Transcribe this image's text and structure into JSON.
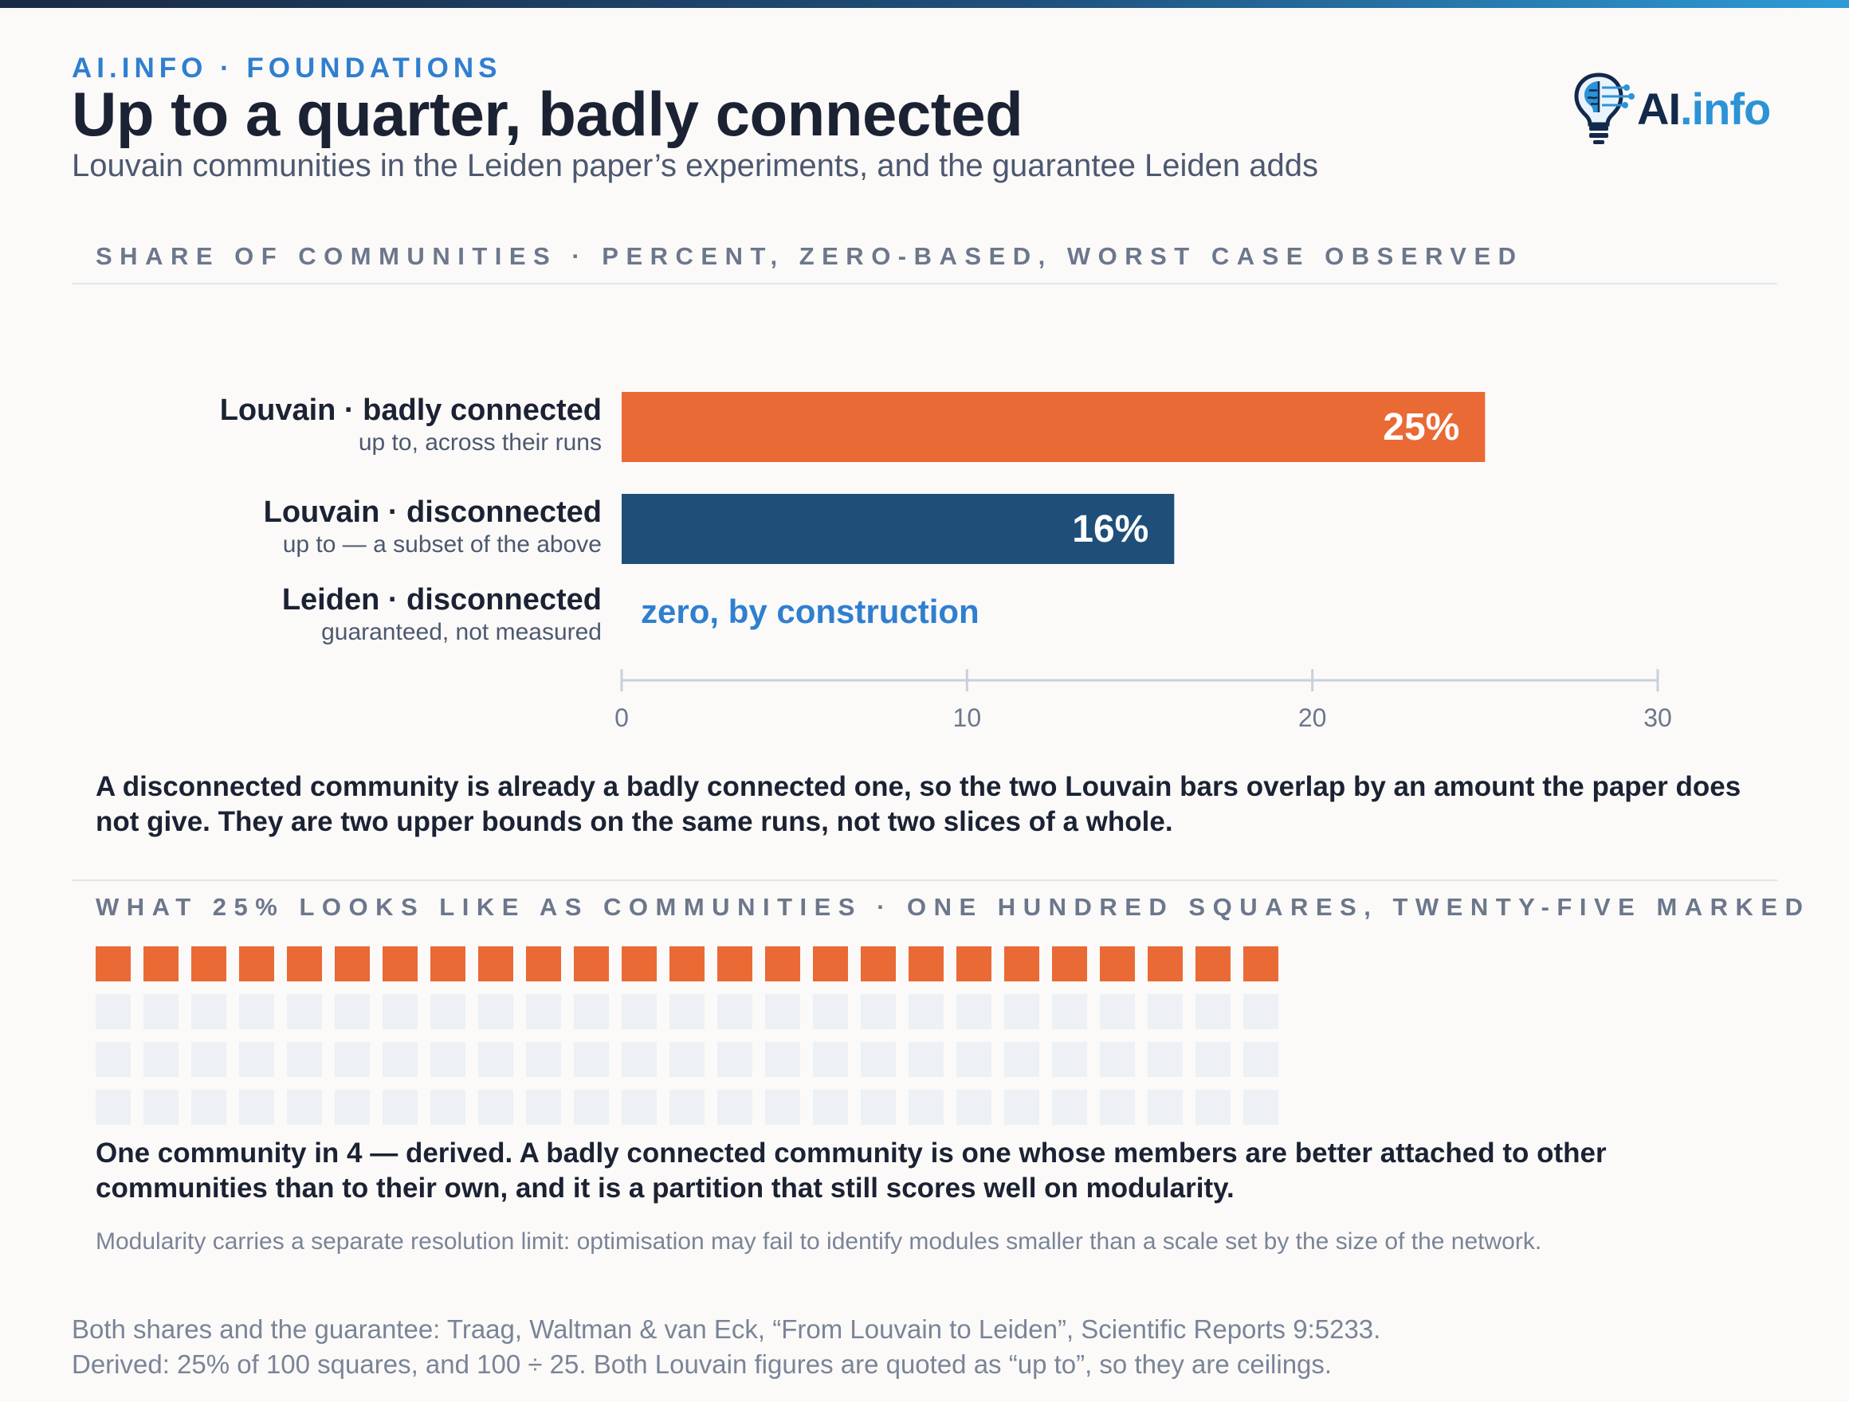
{
  "header": {
    "kicker": "AI.INFO · FOUNDATIONS",
    "title": "Up to a quarter, badly connected",
    "subtitle": "Louvain communities in the Leiden paper’s experiments, and the guarantee Leiden adds"
  },
  "logo": {
    "icon": "brain-lightbulb-icon",
    "text_ai": "AI",
    "text_info": ".info"
  },
  "colors": {
    "accent": "#e96a35",
    "navy": "#1f4e79",
    "blue": "#2f7fd0",
    "empty_square": "#edf0f4"
  },
  "section1": {
    "label": "SHARE OF COMMUNITIES · PERCENT, ZERO-BASED, WORST CASE OBSERVED"
  },
  "chart_data": {
    "type": "bar",
    "orientation": "horizontal",
    "xlim": [
      0,
      30
    ],
    "x_ticks": [
      "0",
      "10",
      "20",
      "30"
    ],
    "grid": false,
    "bars": [
      {
        "label": "Louvain · badly connected",
        "sublabel": "up to, across their runs",
        "value": 25,
        "value_label": "25%",
        "color": "#e96a35"
      },
      {
        "label": "Louvain · disconnected",
        "sublabel": "up to — a subset of the above",
        "value": 16,
        "value_label": "16%",
        "color": "#1f4e79"
      },
      {
        "label": "Leiden · disconnected",
        "sublabel": "guaranteed, not measured",
        "value": 0,
        "value_label": "zero, by construction",
        "color": "#2f7fd0"
      }
    ]
  },
  "note1": "A disconnected community is already a badly connected one, so the two Louvain bars overlap by an amount the paper does not give. They are two upper bounds on the same runs, not two slices of a whole.",
  "section2": {
    "label": "WHAT 25% LOOKS LIKE AS COMMUNITIES · ONE HUNDRED SQUARES, TWENTY-FIVE MARKED"
  },
  "waffle": {
    "total": 100,
    "marked": 25,
    "columns": 25
  },
  "note2": "One community in 4 — derived. A badly connected community is one whose members are better attached to other communities than to their own, and it is a partition that still scores well on modularity.",
  "aside": "Modularity carries a separate resolution limit: optimisation may fail to identify modules smaller than a scale set by the size of the network.",
  "sources": {
    "line1": "Both shares and the guarantee: Traag, Waltman & van Eck, “From Louvain to Leiden”, Scientific Reports 9:5233.",
    "line2": "Derived: 25% of 100 squares, and 100 ÷ 25. Both Louvain figures are quoted as “up to”, so they are ceilings."
  }
}
